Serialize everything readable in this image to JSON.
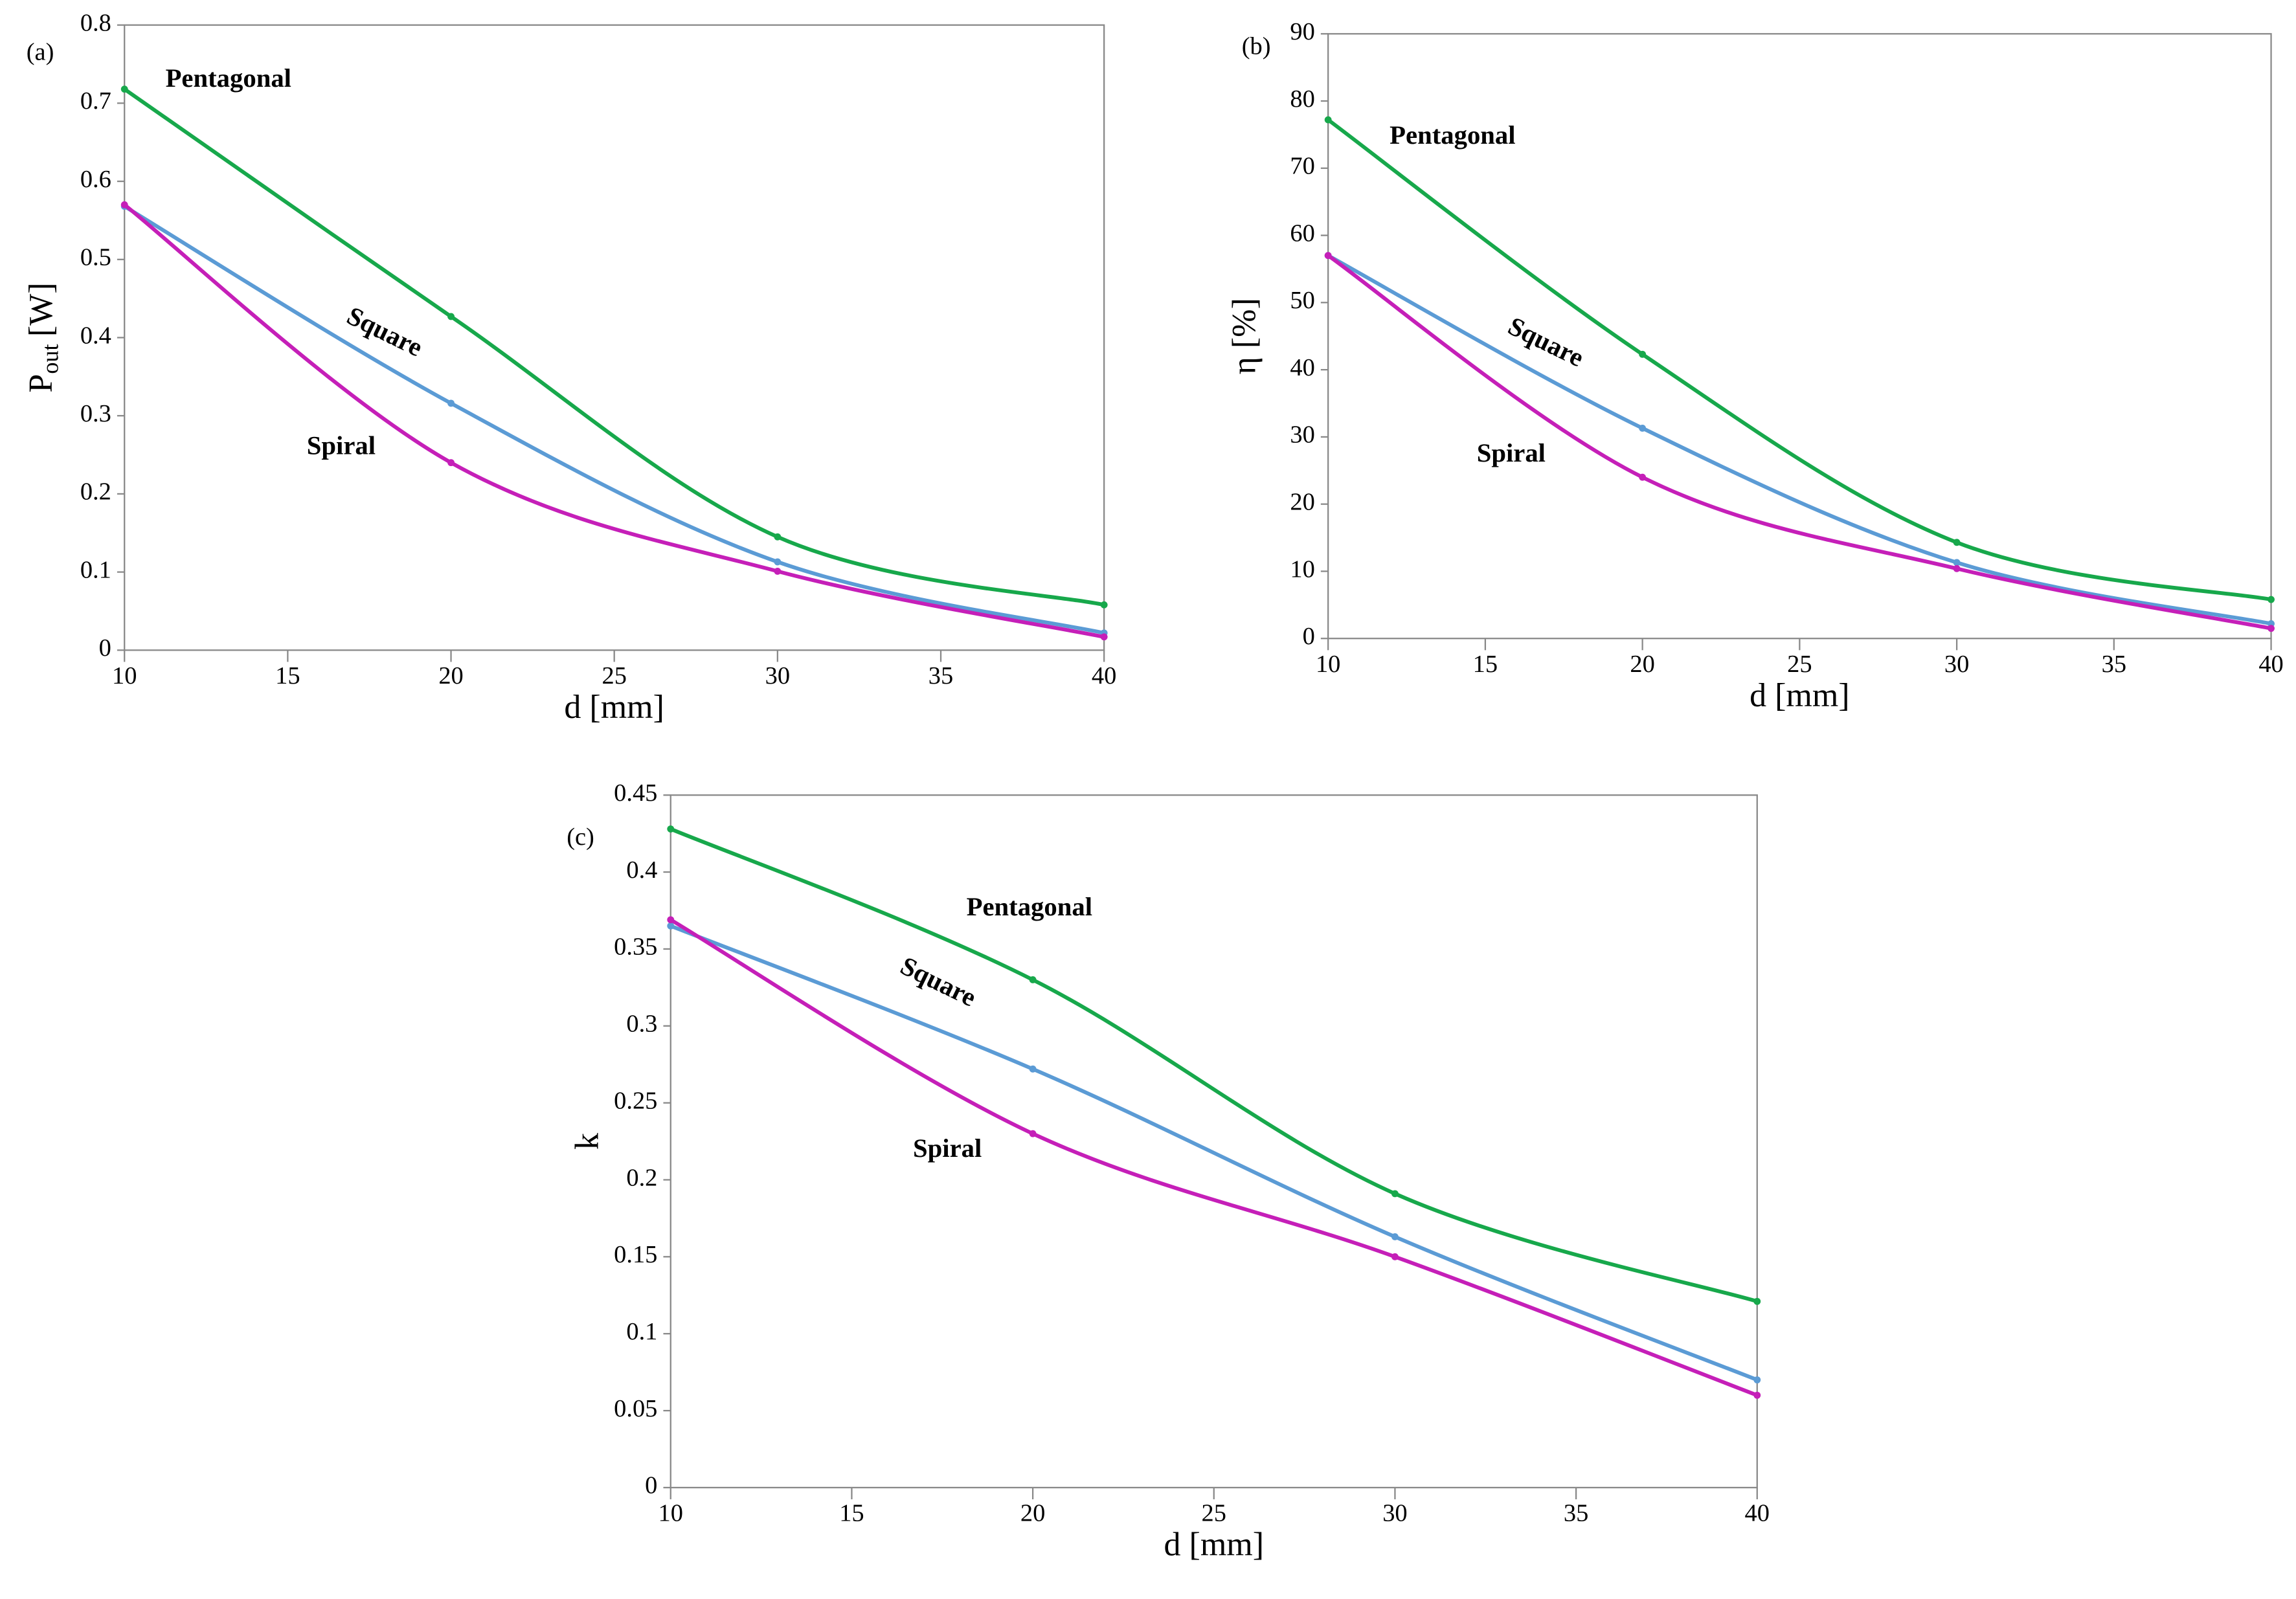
{
  "chart_data": [
    {
      "type": "line",
      "panel": "(a)",
      "y_label_main": "P",
      "y_label_sub": "out",
      "y_label_unit": "[W]",
      "x_label": "d [mm]",
      "x": [
        10,
        20,
        30,
        40
      ],
      "series": [
        {
          "name": "Pentagonal",
          "color": "#17a84b",
          "values": [
            0.718,
            0.427,
            0.145,
            0.058
          ]
        },
        {
          "name": "Square",
          "color": "#5b9bd5",
          "label_color": "#2e75b6",
          "values": [
            0.568,
            0.316,
            0.113,
            0.022
          ]
        },
        {
          "name": "Spiral",
          "color": "#c51fb8",
          "values": [
            0.57,
            0.24,
            0.101,
            0.017
          ]
        }
      ],
      "xlim": [
        10,
        40
      ],
      "xticks": [
        10,
        15,
        20,
        25,
        30,
        35,
        40
      ],
      "ylim": [
        0,
        0.8
      ],
      "yticks": [
        0,
        0.1,
        0.2,
        0.3,
        0.4,
        0.5,
        0.6,
        0.7,
        0.8
      ]
    },
    {
      "type": "line",
      "panel": "(b)",
      "y_label": "η [%]",
      "x_label": "d [mm]",
      "x": [
        10,
        20,
        30,
        40
      ],
      "series": [
        {
          "name": "Pentagonal",
          "color": "#17a84b",
          "values": [
            77.2,
            42.3,
            14.3,
            5.8
          ]
        },
        {
          "name": "Square",
          "color": "#5b9bd5",
          "label_color": "#2e75b6",
          "values": [
            57,
            31.3,
            11.3,
            2.2
          ]
        },
        {
          "name": "Spiral",
          "color": "#c51fb8",
          "values": [
            57,
            24,
            10.4,
            1.5
          ]
        }
      ],
      "xlim": [
        10,
        40
      ],
      "xticks": [
        10,
        15,
        20,
        25,
        30,
        35,
        40
      ],
      "ylim": [
        0,
        90
      ],
      "yticks": [
        0,
        10,
        20,
        30,
        40,
        50,
        60,
        70,
        80,
        90
      ]
    },
    {
      "type": "line",
      "panel": "(c)",
      "y_label": "k",
      "x_label": "d [mm]",
      "x": [
        10,
        20,
        30,
        40
      ],
      "series": [
        {
          "name": "Pentagonal",
          "color": "#17a84b",
          "values": [
            0.428,
            0.33,
            0.191,
            0.121
          ]
        },
        {
          "name": "Square",
          "color": "#5b9bd5",
          "label_color": "#2e75b6",
          "values": [
            0.365,
            0.272,
            0.163,
            0.07
          ]
        },
        {
          "name": "Spiral",
          "color": "#c51fb8",
          "values": [
            0.369,
            0.23,
            0.15,
            0.06
          ]
        }
      ],
      "xlim": [
        10,
        40
      ],
      "xticks": [
        10,
        15,
        20,
        25,
        30,
        35,
        40
      ],
      "ylim": [
        0,
        0.45
      ],
      "yticks": [
        0,
        0.05,
        0.1,
        0.15,
        0.2,
        0.25,
        0.3,
        0.35,
        0.4,
        0.45
      ]
    }
  ]
}
